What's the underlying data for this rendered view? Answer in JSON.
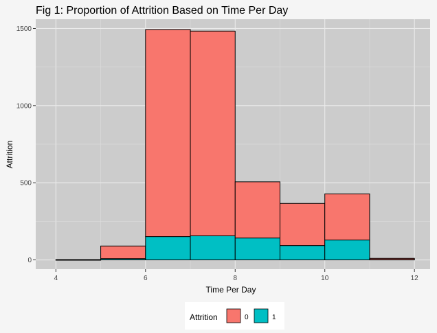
{
  "chart_data": {
    "type": "bar",
    "title": "Fig 1: Proportion of Attrition Based on Time Per Day",
    "xlabel": "Time Per Day",
    "ylabel": "Attrition",
    "xlim": [
      3.55,
      12.35
    ],
    "ylim": [
      -60,
      1560
    ],
    "x_ticks": [
      4,
      6,
      8,
      10,
      12
    ],
    "x_tick_labels": [
      "4",
      "6",
      "8",
      "10",
      "12"
    ],
    "y_ticks": [
      0,
      500,
      1000,
      1500
    ],
    "y_tick_labels": [
      "0",
      "500",
      "1000",
      "1500"
    ],
    "grid": true,
    "stacked": true,
    "bins": [
      {
        "start": 4,
        "end": 5
      },
      {
        "start": 5,
        "end": 6
      },
      {
        "start": 6,
        "end": 7
      },
      {
        "start": 7,
        "end": 8
      },
      {
        "start": 8,
        "end": 9
      },
      {
        "start": 9,
        "end": 10
      },
      {
        "start": 10,
        "end": 11
      },
      {
        "start": 11,
        "end": 12
      }
    ],
    "series": [
      {
        "name": "0",
        "color": "#f8766d",
        "values": [
          2,
          82,
          1342,
          1327,
          364,
          273,
          299,
          8
        ]
      },
      {
        "name": "1",
        "color": "#00bfc4",
        "values": [
          0,
          8,
          151,
          156,
          142,
          93,
          129,
          2
        ]
      }
    ],
    "legend": {
      "title": "Attrition",
      "position": "bottom"
    }
  }
}
